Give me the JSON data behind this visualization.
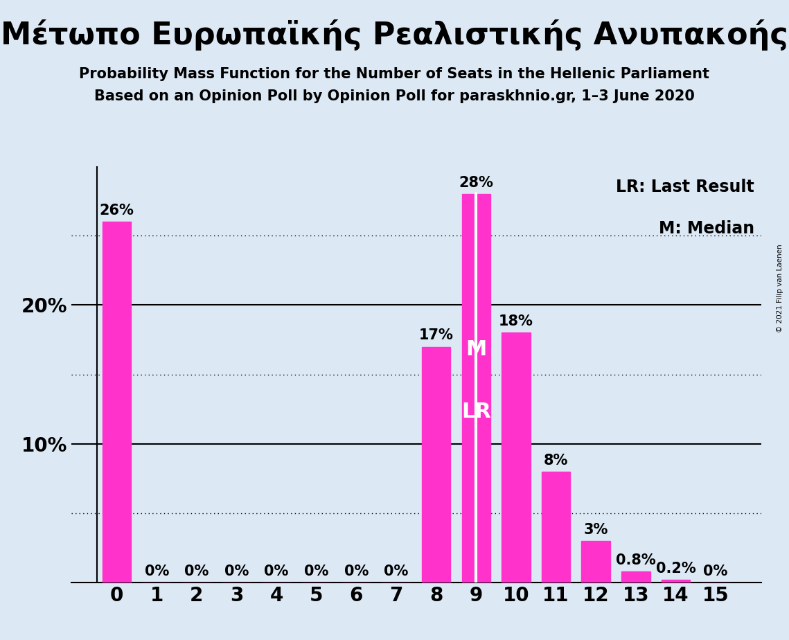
{
  "title_greek": "Μέτωπο Ευρωπαϊκής Ρεαλιστικής Ανυπακοής",
  "subtitle1": "Probability Mass Function for the Number of Seats in the Hellenic Parliament",
  "subtitle2": "Based on an Opinion Poll by Opinion Poll for paraskhnio.gr, 1–3 June 2020",
  "copyright": "© 2021 Filip van Laenen",
  "legend_lr": "LR: Last Result",
  "legend_m": "M: Median",
  "background_color": "#dce9f5",
  "bar_color": "#ff33cc",
  "categories": [
    0,
    1,
    2,
    3,
    4,
    5,
    6,
    7,
    8,
    9,
    10,
    11,
    12,
    13,
    14,
    15
  ],
  "values": [
    26,
    0,
    0,
    0,
    0,
    0,
    0,
    0,
    17,
    28,
    18,
    8,
    3,
    0.8,
    0.2,
    0
  ],
  "labels": [
    "26%",
    "0%",
    "0%",
    "0%",
    "0%",
    "0%",
    "0%",
    "0%",
    "17%",
    "28%",
    "18%",
    "8%",
    "3%",
    "0.8%",
    "0.2%",
    "0%"
  ],
  "median": 9,
  "last_result": 9,
  "ylim": [
    0,
    30
  ],
  "solid_gridlines": [
    10,
    20
  ],
  "dotted_gridlines": [
    5,
    15,
    25
  ],
  "ytick_positions": [
    10,
    20
  ],
  "ytick_labels": [
    "10%",
    "20%"
  ],
  "title_fontsize": 32,
  "subtitle_fontsize": 15,
  "axis_tick_fontsize": 20,
  "bar_label_fontsize": 15,
  "legend_fontsize": 17,
  "overlay_fontsize": 22
}
